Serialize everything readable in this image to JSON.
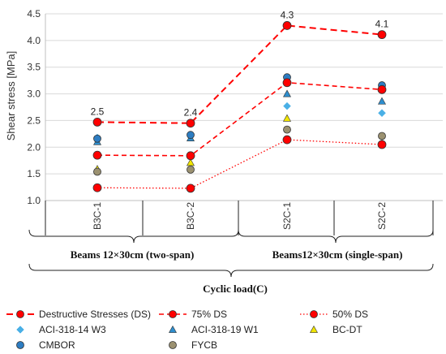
{
  "chart_data": {
    "type": "line",
    "ylabel": "Shear stress [MPa]",
    "ylim": [
      1.0,
      4.5
    ],
    "yticks": [
      "1.0",
      "1.5",
      "2.0",
      "2.5",
      "3.0",
      "3.5",
      "4.0",
      "4.5"
    ],
    "categories": [
      "B3C-1",
      "B3C-2",
      "S2C-1",
      "S2C-2"
    ],
    "grid": "horizontal",
    "groups": [
      {
        "label": "Beams 12×30cm (two-span)",
        "categories": [
          "B3C-1",
          "B3C-2"
        ]
      },
      {
        "label": "Beams12×30cm (single-span)",
        "categories": [
          "S2C-1",
          "S2C-2"
        ]
      }
    ],
    "outer_group": "Cyclic load(C)",
    "data_labels": [
      "2.5",
      "2.4",
      "4.3",
      "4.1"
    ],
    "legend_position": "bottom",
    "series": [
      {
        "name": "Destructive Stresses (DS)",
        "values": [
          2.47,
          2.45,
          4.28,
          4.11
        ],
        "color": "#ff0000",
        "line": "dashed-heavy",
        "marker": "circle"
      },
      {
        "name": "75% DS",
        "values": [
          1.85,
          1.84,
          3.21,
          3.08
        ],
        "color": "#ff0000",
        "line": "dashed",
        "marker": "circle"
      },
      {
        "name": "50% DS",
        "values": [
          1.24,
          1.23,
          2.14,
          2.05
        ],
        "color": "#ff0000",
        "line": "dotted",
        "marker": "circle"
      },
      {
        "name": "ACI-318-14 W3",
        "values": [
          2.18,
          2.21,
          2.77,
          2.64
        ],
        "color": "#4ab0e6",
        "line": "none",
        "marker": "diamond"
      },
      {
        "name": "ACI-318-19 W1",
        "values": [
          2.1,
          2.17,
          3.0,
          2.86
        ],
        "color": "#2e8ece",
        "line": "none",
        "marker": "triangle"
      },
      {
        "name": "BC-DT",
        "values": [
          1.59,
          1.71,
          2.54,
          2.07
        ],
        "color": "#f2e600",
        "line": "none",
        "marker": "triangle"
      },
      {
        "name": "CMBOR",
        "values": [
          2.16,
          2.23,
          3.31,
          3.16
        ],
        "color": "#2d7dc2",
        "line": "none",
        "marker": "circle"
      },
      {
        "name": "FYCB",
        "values": [
          1.54,
          1.58,
          2.33,
          2.21
        ],
        "color": "#9b9170",
        "line": "none",
        "marker": "circle"
      }
    ]
  }
}
